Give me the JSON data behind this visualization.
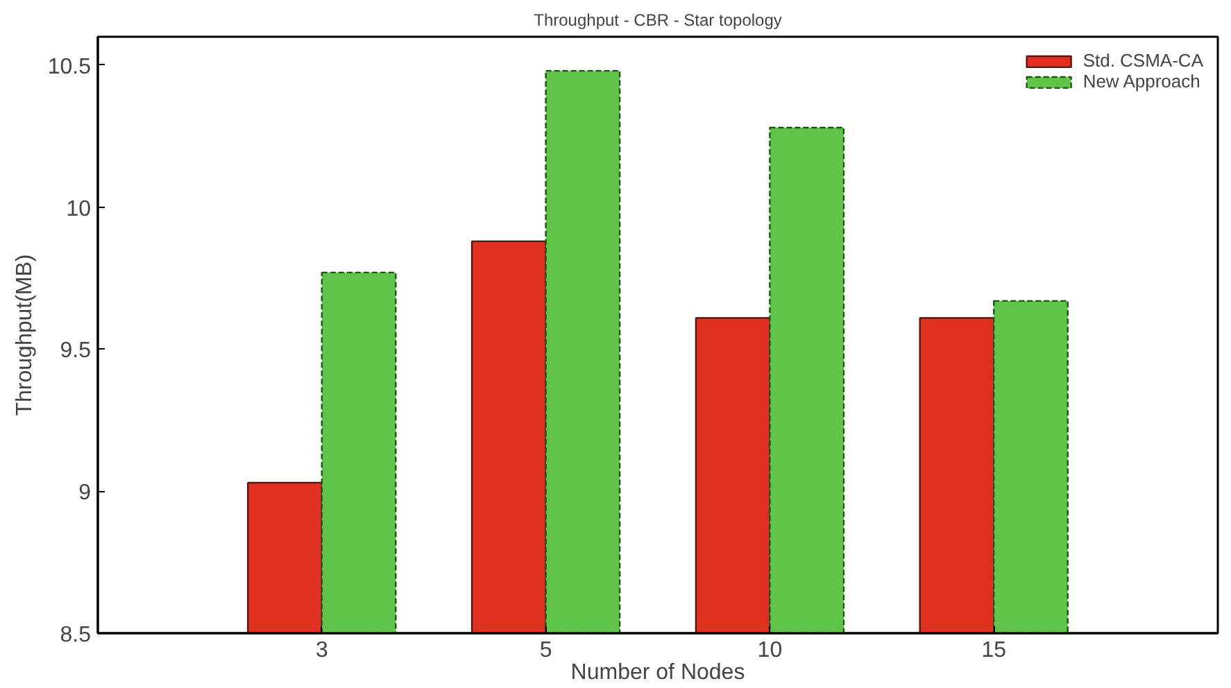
{
  "chart_data": {
    "type": "bar",
    "title": "Throughput - CBR - Star topology",
    "xlabel": "Number of Nodes",
    "ylabel": "Throughput(MB)",
    "categories": [
      "3",
      "5",
      "10",
      "15"
    ],
    "series": [
      {
        "name": "Std. CSMA-CA",
        "color": "#e03020",
        "values": [
          9.03,
          9.88,
          9.61,
          9.61
        ]
      },
      {
        "name": "New Approach",
        "color": "#60c44a",
        "values": [
          9.77,
          10.48,
          10.28,
          9.67
        ],
        "line_style": "dashed"
      }
    ],
    "ylim": [
      8.5,
      10.6
    ],
    "yticks": [
      8.5,
      9,
      9.5,
      10,
      10.5
    ],
    "grid": false,
    "legend": "top right"
  }
}
